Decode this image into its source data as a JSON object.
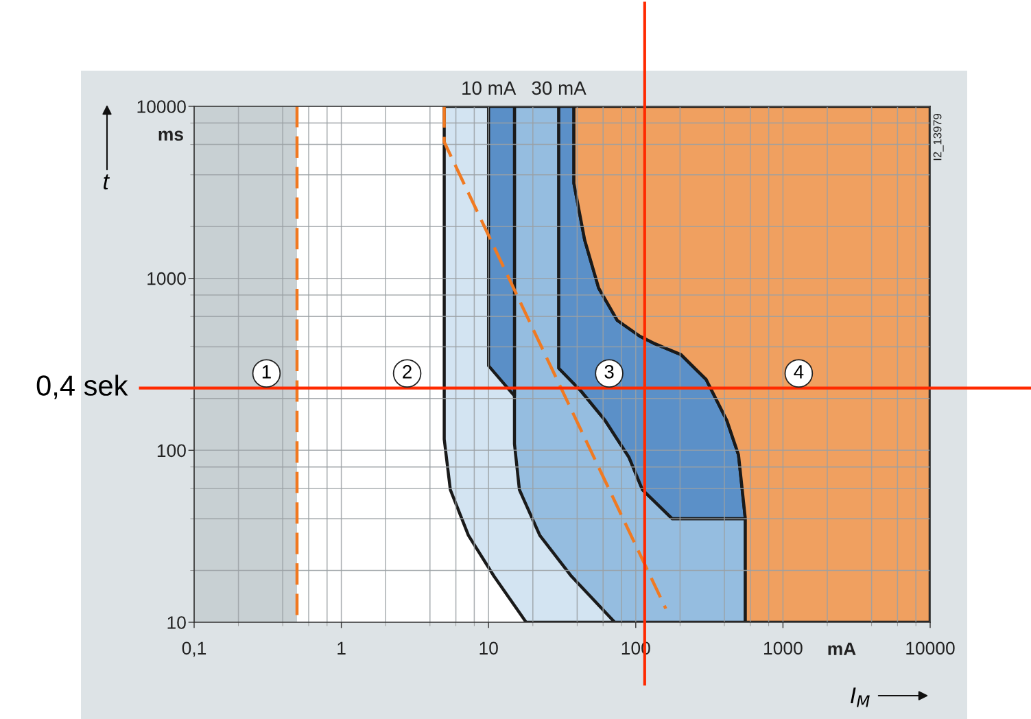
{
  "chart_data": {
    "type": "line",
    "xlabel": "I$_{M}$",
    "ylabel": "t",
    "log": "xy",
    "xlim": [
      0.1,
      10000
    ],
    "ylim": [
      10,
      10000
    ],
    "xticks": [
      {
        "value": 0.1,
        "label": "0,1"
      },
      1,
      10,
      100,
      1000,
      10000
    ],
    "yticks": [
      10,
      100,
      1000,
      10000
    ],
    "grid": true,
    "bands": [
      {
        "axis": "x",
        "from": 0.1,
        "to": 0.5,
        "color": "#c8d0d3"
      }
    ],
    "ref_lines": [
      {
        "axis": "x",
        "value": 115,
        "color": "#ff2a00"
      },
      {
        "axis": "y",
        "value": 230,
        "label": "0,4 sek",
        "color": "#ff2a00"
      }
    ],
    "series": [
      {
        "type": "area",
        "color": "#d3e4f2",
        "x": [
          5,
          5,
          5.5,
          7.3,
          10.9,
          18,
          555,
          555,
          499,
          416,
          301,
          203,
          132,
          107,
          75,
          56,
          45,
          38,
          38
        ],
        "values": [
          10000,
          116,
          59,
          32,
          18.5,
          10,
          10,
          40,
          94,
          149,
          258,
          360,
          420,
          460,
          569,
          877,
          1670,
          3570,
          10000
        ]
      },
      {
        "type": "area",
        "color": "#95bde0",
        "x": [
          15,
          15,
          15,
          16.2,
          22.3,
          36.6,
          72,
          555,
          555,
          177,
          111,
          90,
          62,
          42.5,
          30,
          30
        ],
        "values": [
          10000,
          207,
          109,
          59,
          32,
          18.5,
          10,
          10,
          40,
          40,
          59,
          91,
          149,
          221,
          300,
          10000
        ]
      },
      {
        "type": "area",
        "color": "#5b90c8",
        "x": [
          38,
          38,
          45,
          56,
          75,
          107,
          132,
          203,
          301,
          416,
          499,
          555,
          177,
          111,
          90,
          62,
          42.5,
          30,
          30
        ],
        "values": [
          10000,
          3570,
          1670,
          877,
          569,
          460,
          420,
          360,
          258,
          149,
          94,
          40,
          40,
          59,
          91,
          149,
          221,
          300,
          10000
        ]
      },
      {
        "type": "area",
        "color": "#5a8fc7",
        "x": [
          10,
          10,
          15,
          15
        ],
        "values": [
          10000,
          310,
          207,
          10000
        ]
      },
      {
        "type": "area",
        "color": "#f0a060",
        "x": [
          38,
          38,
          45,
          56,
          75,
          107,
          132,
          203,
          301,
          416,
          499,
          555,
          555,
          10000,
          10000
        ],
        "values": [
          10000,
          3570,
          1670,
          877,
          569,
          460,
          420,
          360,
          258,
          149,
          94,
          40,
          10,
          10,
          10000
        ]
      },
      {
        "color": "#f07820",
        "line_style": "dashed",
        "x": [
          0.5,
          0.5
        ],
        "values": [
          11,
          10000
        ]
      },
      {
        "color": "#f07a22",
        "line_style": "dashed",
        "x": [
          5,
          5,
          160
        ],
        "values": [
          10000,
          6200,
          12
        ]
      }
    ],
    "annotations": [
      {
        "text": "10 mA",
        "x": 10,
        "y": 10000
      },
      {
        "text": "30 mA",
        "x": 30,
        "y": 10000
      },
      {
        "text": "1",
        "x": 0.31,
        "y": 280
      },
      {
        "text": "2",
        "x": 2.8,
        "y": 280
      },
      {
        "text": "3",
        "x": 66,
        "y": 280
      },
      {
        "text": "4",
        "x": 1280,
        "y": 280
      },
      "ms",
      "mA",
      "I2_13979"
    ]
  }
}
